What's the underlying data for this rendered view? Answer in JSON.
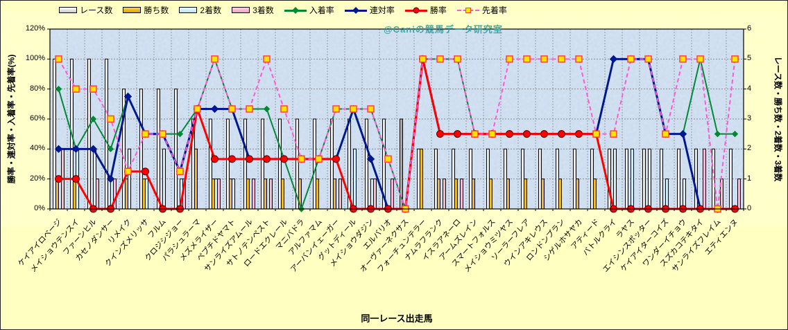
{
  "watermark": "@Caniの競馬データ研究室",
  "axes": {
    "left": {
      "title": "勝率・連対率・入着率・先着率(%)",
      "ticks": [
        "0%",
        "20%",
        "40%",
        "60%",
        "80%",
        "100%",
        "120%"
      ],
      "range": [
        0,
        120
      ]
    },
    "right": {
      "title": "レース数・勝ち数・2着数・3着数",
      "ticks": [
        "0",
        "1",
        "2",
        "3",
        "4",
        "5",
        "6"
      ],
      "range": [
        0,
        6
      ]
    },
    "x": {
      "title": "同一レース出走馬"
    }
  },
  "legend": [
    {
      "label": "レース数",
      "type": "bar",
      "light": "#ffffff",
      "dark": "#c9c9c9"
    },
    {
      "label": "勝ち数",
      "type": "bar",
      "light": "#ffd24d",
      "dark": "#dca300"
    },
    {
      "label": "2着数",
      "type": "bar",
      "light": "#eafbff",
      "dark": "#b6e3f1"
    },
    {
      "label": "3着数",
      "type": "bar",
      "light": "#ffd3e6",
      "dark": "#ee9fc5"
    },
    {
      "label": "入着率",
      "type": "line-diamond",
      "color": "#008837"
    },
    {
      "label": "連対率",
      "type": "line-diamond",
      "color": "#00188f"
    },
    {
      "label": "勝率",
      "type": "line-circle",
      "color": "#ff0000"
    },
    {
      "label": "先着率",
      "type": "line-square-dashed",
      "color": "#ff5ad5"
    }
  ],
  "plot_style": {
    "background": "#c8daee",
    "grid": "#8a8a8a",
    "highlight_bar": [
      "#c4c4c4",
      "#8f8f8f"
    ]
  },
  "chart_data": {
    "type": "combo",
    "x_title": "同一レース出走馬",
    "left_axis_range": [
      0,
      120
    ],
    "right_axis_range": [
      0,
      6
    ],
    "grid": true,
    "legend_position": "top",
    "highlighted_category_index": 20,
    "categories": [
      "ケイアイロベージ",
      "メイショウテンスイ",
      "ファーンヒル",
      "カセノダンサー",
      "リメイク",
      "クインズメリッサ",
      "フルム",
      "クロジシジョー",
      "パラシュラーマ",
      "メズメライザー",
      "ペプチドヤマト",
      "サンライズアムール",
      "サトノテンペスト",
      "ロードエクレール",
      "マニバドラ",
      "アルファマム",
      "アーバンイェーガー",
      "グットディール",
      "メイショウダジン",
      "エルバリオ",
      "オーヴァーネクサス",
      "フォーチュンテラー",
      "ナムラフランク",
      "イスラアネーロ",
      "アームズレイン",
      "スマートフォルス",
      "メイショウミツヤス",
      "ソーラーフレア",
      "ウインアキレウス",
      "ロンドンプラン",
      "シゲルホサヤカ",
      "アティード",
      "バトルクライ",
      "ラヤス",
      "エイシンスポッター",
      "ケイアイターコイズ",
      "ワンダーイチョウ",
      "スズカコテキタイ",
      "サンライズフレイム",
      "エティエンヌ"
    ],
    "series": [
      {
        "name": "レース数",
        "type": "bar",
        "axis": "right",
        "light": "#ffffff",
        "dark": "#d2d2d2",
        "values": [
          5,
          5,
          5,
          5,
          4,
          4,
          4,
          4,
          3,
          3,
          3,
          3,
          3,
          3,
          3,
          3,
          3,
          3,
          3,
          3,
          3,
          2,
          2,
          2,
          2,
          2,
          2,
          2,
          2,
          2,
          2,
          2,
          2,
          2,
          2,
          2,
          2,
          2,
          2,
          2
        ]
      },
      {
        "name": "勝ち数",
        "type": "bar",
        "axis": "right",
        "light": "#ffd24d",
        "dark": "#dca300",
        "values": [
          1,
          1,
          0,
          0,
          1,
          1,
          0,
          0,
          2,
          1,
          1,
          1,
          1,
          1,
          1,
          1,
          1,
          0,
          0,
          0,
          0,
          2,
          1,
          1,
          1,
          1,
          1,
          1,
          1,
          1,
          1,
          1,
          0,
          0,
          0,
          0,
          0,
          0,
          0,
          0
        ]
      },
      {
        "name": "2着数",
        "type": "bar",
        "axis": "right",
        "light": "#eafbff",
        "dark": "#b6e3f1",
        "values": [
          1,
          2,
          2,
          1,
          2,
          1,
          2,
          1,
          0,
          1,
          1,
          0,
          0,
          0,
          0,
          0,
          0,
          2,
          1,
          0,
          0,
          0,
          0,
          0,
          0,
          0,
          0,
          0,
          0,
          0,
          0,
          0,
          2,
          2,
          2,
          1,
          1,
          0,
          0,
          0
        ]
      },
      {
        "name": "3着数",
        "type": "bar",
        "axis": "right",
        "light": "#ffd3e6",
        "dark": "#ee9fc5",
        "values": [
          2,
          0,
          1,
          1,
          0,
          0,
          0,
          1,
          0,
          1,
          0,
          1,
          1,
          0,
          0,
          0,
          1,
          0,
          1,
          1,
          0,
          0,
          1,
          1,
          0,
          0,
          0,
          0,
          0,
          0,
          0,
          0,
          0,
          0,
          0,
          0,
          0,
          2,
          1,
          1
        ]
      },
      {
        "name": "入着率",
        "type": "line",
        "axis": "left",
        "marker": "diamond",
        "color": "#008837",
        "width": 2,
        "values": [
          80,
          40,
          60,
          40,
          75,
          50,
          50,
          50,
          66.7,
          100,
          66.7,
          66.7,
          66.7,
          33.3,
          0,
          33.3,
          66.7,
          66.7,
          66.7,
          33.3,
          0,
          100,
          100,
          100,
          50,
          50,
          50,
          50,
          50,
          50,
          50,
          50,
          100,
          100,
          100,
          50,
          50,
          100,
          50,
          50
        ]
      },
      {
        "name": "連対率",
        "type": "line",
        "axis": "left",
        "marker": "diamond",
        "color": "#00188f",
        "width": 3,
        "values": [
          40,
          40,
          40,
          20,
          75,
          50,
          50,
          25,
          66.7,
          66.7,
          66.7,
          33.3,
          33.3,
          33.3,
          33.3,
          33.3,
          33.3,
          66.7,
          33.3,
          0,
          0,
          100,
          50,
          50,
          50,
          50,
          50,
          50,
          50,
          50,
          50,
          50,
          100,
          100,
          100,
          50,
          50,
          0,
          0,
          0
        ]
      },
      {
        "name": "勝率",
        "type": "line",
        "axis": "left",
        "marker": "circle",
        "color": "#ff0000",
        "width": 3,
        "values": [
          20,
          20,
          0,
          0,
          25,
          25,
          0,
          0,
          66.7,
          33.3,
          33.3,
          33.3,
          33.3,
          33.3,
          33.3,
          33.3,
          33.3,
          0,
          0,
          0,
          0,
          100,
          50,
          50,
          50,
          50,
          50,
          50,
          50,
          50,
          50,
          50,
          0,
          0,
          0,
          0,
          0,
          0,
          0,
          0
        ]
      },
      {
        "name": "先着率",
        "type": "line",
        "axis": "left",
        "marker": "square",
        "dashed": true,
        "color": "#ff5ad5",
        "width": 2,
        "values": [
          100,
          80,
          80,
          60,
          25,
          50,
          50,
          25,
          66.7,
          100,
          66.7,
          66.7,
          100,
          66.7,
          33.3,
          33.3,
          66.7,
          66.7,
          66.7,
          33.3,
          0,
          100,
          100,
          100,
          50,
          50,
          100,
          100,
          100,
          100,
          100,
          50,
          50,
          100,
          100,
          50,
          100,
          100,
          0,
          100
        ]
      }
    ]
  }
}
